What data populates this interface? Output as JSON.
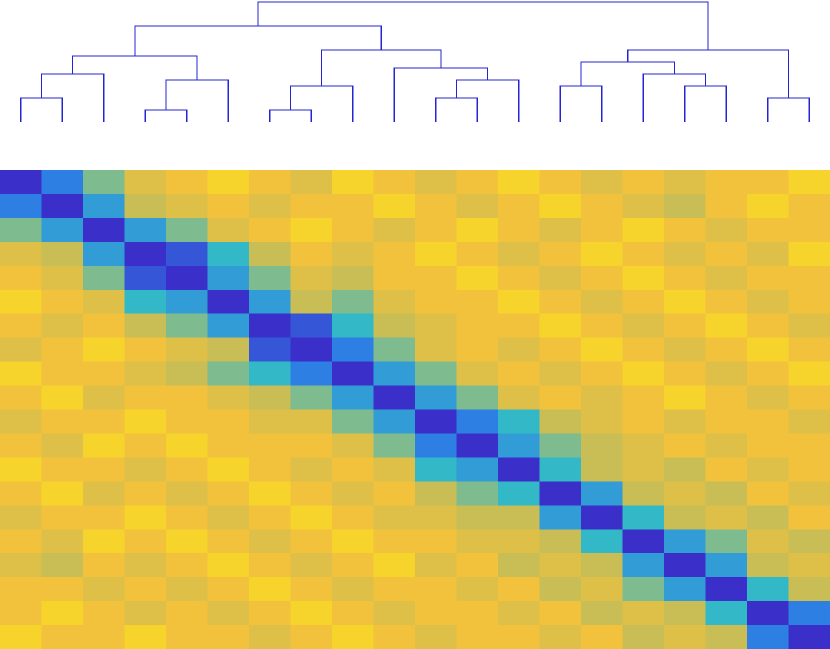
{
  "chart_data": {
    "type": "heatmap",
    "clim": [
      0,
      1
    ],
    "colormap": [
      "#3b2fc9",
      "#2e7fe4",
      "#33b8c8",
      "#c9bd55",
      "#f2c23c",
      "#fbe51c"
    ],
    "values": [
      [
        0,
        0.2,
        0.5,
        0.7,
        0.8,
        0.9,
        0.8,
        0.7,
        0.9,
        0.8,
        0.7,
        0.8,
        0.9,
        0.8,
        0.7,
        0.8,
        0.7,
        0.8,
        0.8,
        0.9
      ],
      [
        0.2,
        0,
        0.3,
        0.6,
        0.7,
        0.8,
        0.7,
        0.8,
        0.8,
        0.9,
        0.8,
        0.7,
        0.8,
        0.9,
        0.8,
        0.7,
        0.6,
        0.8,
        0.9,
        0.8
      ],
      [
        0.5,
        0.3,
        0,
        0.3,
        0.5,
        0.7,
        0.8,
        0.9,
        0.8,
        0.7,
        0.8,
        0.9,
        0.8,
        0.7,
        0.8,
        0.9,
        0.8,
        0.7,
        0.8,
        0.8
      ],
      [
        0.7,
        0.6,
        0.3,
        0,
        0.1,
        0.4,
        0.6,
        0.8,
        0.7,
        0.8,
        0.9,
        0.8,
        0.7,
        0.8,
        0.9,
        0.8,
        0.7,
        0.8,
        0.7,
        0.9
      ],
      [
        0.8,
        0.7,
        0.5,
        0.1,
        0,
        0.3,
        0.5,
        0.7,
        0.6,
        0.8,
        0.8,
        0.9,
        0.8,
        0.7,
        0.8,
        0.9,
        0.8,
        0.7,
        0.8,
        0.8
      ],
      [
        0.9,
        0.8,
        0.7,
        0.4,
        0.3,
        0,
        0.3,
        0.6,
        0.5,
        0.7,
        0.8,
        0.8,
        0.9,
        0.8,
        0.7,
        0.8,
        0.9,
        0.8,
        0.7,
        0.8
      ],
      [
        0.8,
        0.7,
        0.8,
        0.6,
        0.5,
        0.3,
        0,
        0.1,
        0.4,
        0.6,
        0.7,
        0.8,
        0.8,
        0.9,
        0.8,
        0.7,
        0.8,
        0.9,
        0.8,
        0.7
      ],
      [
        0.7,
        0.8,
        0.9,
        0.8,
        0.7,
        0.6,
        0.1,
        0,
        0.2,
        0.5,
        0.7,
        0.8,
        0.7,
        0.8,
        0.9,
        0.8,
        0.7,
        0.8,
        0.9,
        0.8
      ],
      [
        0.9,
        0.8,
        0.8,
        0.7,
        0.6,
        0.5,
        0.4,
        0.2,
        0,
        0.3,
        0.5,
        0.7,
        0.8,
        0.7,
        0.8,
        0.9,
        0.8,
        0.7,
        0.8,
        0.9
      ],
      [
        0.8,
        0.9,
        0.7,
        0.8,
        0.8,
        0.7,
        0.6,
        0.5,
        0.3,
        0,
        0.3,
        0.5,
        0.7,
        0.8,
        0.7,
        0.8,
        0.9,
        0.8,
        0.7,
        0.8
      ],
      [
        0.7,
        0.8,
        0.8,
        0.9,
        0.8,
        0.8,
        0.7,
        0.7,
        0.5,
        0.3,
        0,
        0.2,
        0.4,
        0.6,
        0.7,
        0.8,
        0.7,
        0.8,
        0.8,
        0.7
      ],
      [
        0.8,
        0.7,
        0.9,
        0.8,
        0.9,
        0.8,
        0.8,
        0.8,
        0.7,
        0.5,
        0.2,
        0,
        0.3,
        0.5,
        0.6,
        0.7,
        0.8,
        0.7,
        0.8,
        0.8
      ],
      [
        0.9,
        0.8,
        0.8,
        0.7,
        0.8,
        0.9,
        0.8,
        0.7,
        0.8,
        0.7,
        0.4,
        0.3,
        0,
        0.4,
        0.6,
        0.7,
        0.6,
        0.8,
        0.7,
        0.8
      ],
      [
        0.8,
        0.9,
        0.7,
        0.8,
        0.7,
        0.8,
        0.9,
        0.8,
        0.7,
        0.8,
        0.6,
        0.5,
        0.4,
        0,
        0.3,
        0.6,
        0.7,
        0.6,
        0.8,
        0.7
      ],
      [
        0.7,
        0.8,
        0.8,
        0.9,
        0.8,
        0.7,
        0.8,
        0.9,
        0.8,
        0.7,
        0.7,
        0.6,
        0.6,
        0.3,
        0,
        0.4,
        0.6,
        0.7,
        0.6,
        0.8
      ],
      [
        0.8,
        0.7,
        0.9,
        0.8,
        0.9,
        0.8,
        0.7,
        0.8,
        0.9,
        0.8,
        0.8,
        0.7,
        0.7,
        0.6,
        0.4,
        0,
        0.3,
        0.5,
        0.7,
        0.6
      ],
      [
        0.7,
        0.6,
        0.8,
        0.7,
        0.8,
        0.9,
        0.8,
        0.7,
        0.8,
        0.9,
        0.7,
        0.8,
        0.6,
        0.7,
        0.6,
        0.3,
        0,
        0.3,
        0.6,
        0.7
      ],
      [
        0.8,
        0.8,
        0.7,
        0.8,
        0.7,
        0.8,
        0.9,
        0.8,
        0.7,
        0.8,
        0.8,
        0.7,
        0.8,
        0.6,
        0.7,
        0.5,
        0.3,
        0,
        0.4,
        0.6
      ],
      [
        0.8,
        0.9,
        0.8,
        0.7,
        0.8,
        0.7,
        0.8,
        0.9,
        0.8,
        0.7,
        0.8,
        0.8,
        0.7,
        0.8,
        0.6,
        0.7,
        0.6,
        0.4,
        0,
        0.2
      ],
      [
        0.9,
        0.8,
        0.8,
        0.9,
        0.8,
        0.8,
        0.7,
        0.8,
        0.9,
        0.8,
        0.7,
        0.8,
        0.8,
        0.7,
        0.8,
        0.6,
        0.7,
        0.6,
        0.2,
        0
      ]
    ],
    "dendrogram": {
      "color": "#2424d0",
      "linkage": [
        [
          3,
          4,
          0.1
        ],
        [
          6,
          7,
          0.1
        ],
        [
          18,
          19,
          0.2
        ],
        [
          0,
          1,
          0.2
        ],
        [
          10,
          11,
          0.2
        ],
        [
          21,
          8,
          0.3
        ],
        [
          20,
          5,
          0.35
        ],
        [
          16,
          17,
          0.3
        ],
        [
          13,
          14,
          0.3
        ],
        [
          24,
          12,
          0.35
        ],
        [
          23,
          2,
          0.4
        ],
        [
          15,
          27,
          0.4
        ],
        [
          9,
          29,
          0.45
        ],
        [
          30,
          26,
          0.55
        ],
        [
          28,
          31,
          0.5
        ],
        [
          34,
          22,
          0.6
        ],
        [
          25,
          32,
          0.6
        ],
        [
          33,
          36,
          0.8
        ],
        [
          37,
          35,
          1.0
        ]
      ]
    }
  }
}
